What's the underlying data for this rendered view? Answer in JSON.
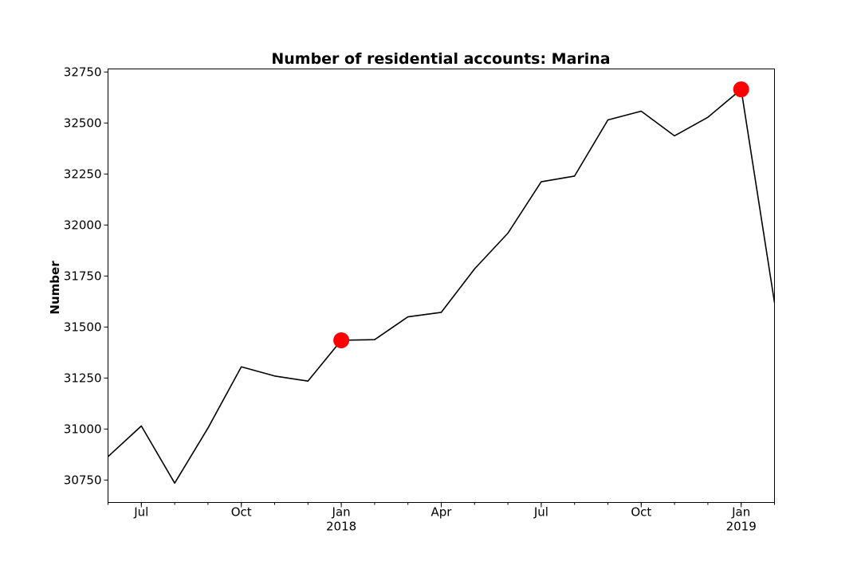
{
  "chart_data": {
    "type": "line",
    "title": "Number of residential accounts: Marina",
    "xlabel": "",
    "ylabel": "Number",
    "ylim": [
      30640,
      32765
    ],
    "xlim": [
      "2017-06",
      "2019-02"
    ],
    "grid": false,
    "series": [
      {
        "color": "#000000",
        "x": [
          "2017-06",
          "2017-07",
          "2017-08",
          "2017-09",
          "2017-10",
          "2017-11",
          "2017-12",
          "2018-01",
          "2018-02",
          "2018-03",
          "2018-04",
          "2018-05",
          "2018-06",
          "2018-07",
          "2018-08",
          "2018-09",
          "2018-10",
          "2018-11",
          "2018-12",
          "2019-01",
          "2019-02"
        ],
        "values": [
          30865,
          31015,
          30735,
          31005,
          31305,
          31260,
          31235,
          31435,
          31438,
          31550,
          31572,
          31785,
          31960,
          32212,
          32240,
          32515,
          32558,
          32437,
          32528,
          32665,
          31620
        ]
      }
    ],
    "highlight_points": {
      "color": "#ff0000",
      "x": [
        "2018-01",
        "2019-01"
      ],
      "values": [
        31435,
        32665
      ]
    },
    "y_ticks": [
      "30750",
      "31000",
      "31250",
      "31500",
      "31750",
      "32000",
      "32250",
      "32500",
      "32750"
    ],
    "x_major_ticks": [
      {
        "x": "2017-07",
        "label": "Jul",
        "sublabel": ""
      },
      {
        "x": "2017-10",
        "label": "Oct",
        "sublabel": ""
      },
      {
        "x": "2018-01",
        "label": "Jan",
        "sublabel": "2018"
      },
      {
        "x": "2018-04",
        "label": "Apr",
        "sublabel": ""
      },
      {
        "x": "2018-07",
        "label": "Jul",
        "sublabel": ""
      },
      {
        "x": "2018-10",
        "label": "Oct",
        "sublabel": ""
      },
      {
        "x": "2019-01",
        "label": "Jan",
        "sublabel": "2019"
      }
    ]
  }
}
